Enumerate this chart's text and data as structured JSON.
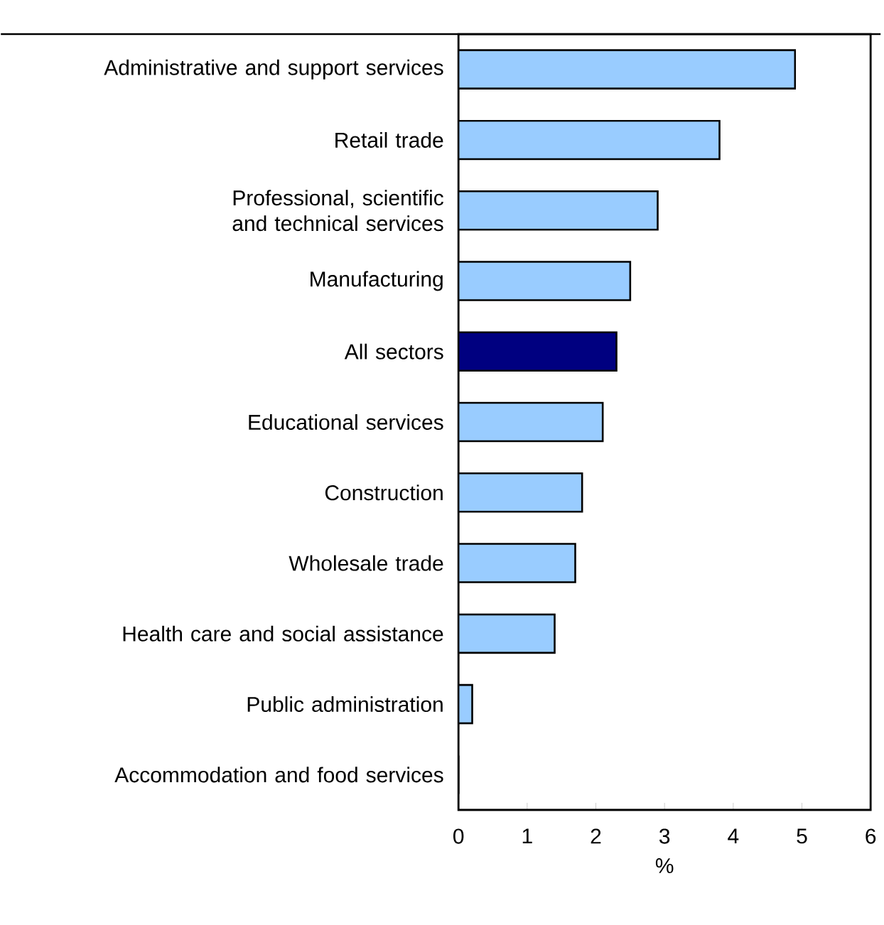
{
  "chart_data": {
    "type": "bar",
    "orientation": "horizontal",
    "xlabel": "%",
    "categories": [
      "Administrative and support services",
      "Retail trade",
      "Professional, scientific and technical services",
      "Manufacturing",
      "All sectors",
      "Educational services",
      "Construction",
      "Wholesale trade",
      "Health care and social assistance",
      "Public administration",
      "Accommodation and food services"
    ],
    "values": [
      4.9,
      3.8,
      2.9,
      2.5,
      2.3,
      2.1,
      1.8,
      1.7,
      1.4,
      0.2,
      0
    ],
    "colors": [
      "#99ccff",
      "#99ccff",
      "#99ccff",
      "#99ccff",
      "#000080",
      "#99ccff",
      "#99ccff",
      "#99ccff",
      "#99ccff",
      "#99ccff",
      "#99ccff"
    ],
    "xlim": [
      0,
      6
    ],
    "xticks": [
      0,
      1,
      2,
      3,
      4,
      5,
      6
    ]
  }
}
